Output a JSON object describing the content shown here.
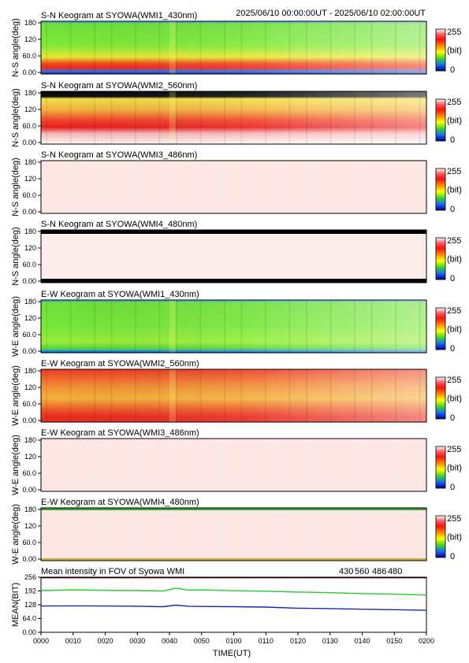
{
  "panels": [
    {
      "title": "S-N Keogram at SYOWA(WMI1_430nm)",
      "ylabel": "N-S angle(deg)",
      "style": "green430_sn"
    },
    {
      "title": "S-N Keogram at SYOWA(WMI2_560nm)",
      "ylabel": "N-S angle(deg)",
      "style": "red560_sn"
    },
    {
      "title": "S-N Keogram at SYOWA(WMI3_486nm)",
      "ylabel": "N-S angle(deg)",
      "style": "pale"
    },
    {
      "title": "S-N Keogram at SYOWA(WMI4_480nm)",
      "ylabel": "N-S angle(deg)",
      "style": "pale_bars"
    },
    {
      "title": "E-W Keogram at SYOWA(WMI1_430nm)",
      "ylabel": "W-E angle(deg)",
      "style": "green430_ew"
    },
    {
      "title": "E-W Keogram at SYOWA(WMI2_560nm)",
      "ylabel": "W-E angle(deg)",
      "style": "red560_ew"
    },
    {
      "title": "E-W Keogram at SYOWA(WMI3_486nm)",
      "ylabel": "W-E angle(deg)",
      "style": "pale"
    },
    {
      "title": "E-W Keogram at SYOWA(WMI4_480nm)",
      "ylabel": "W-E angle(deg)",
      "style": "pale_edges"
    }
  ],
  "time_range": "2025/06/10 00:00:00UT - 2025/06/10 02:00:00UT",
  "keogram_yticks": [
    "180",
    "120",
    "60.0",
    "0.00"
  ],
  "colorbar": {
    "max_label": "255",
    "unit_label": "(bit)",
    "min_label": "0"
  },
  "mean_panel": {
    "title": "Mean intensity in FOV of Syowa WMI",
    "legend": [
      {
        "label": "430",
        "color": "#1a2aa8"
      },
      {
        "label": "560",
        "color": "#22cc22"
      },
      {
        "label": "486",
        "color": "#cc2222"
      },
      {
        "label": "480",
        "color": "#000000"
      }
    ],
    "ylabel": "MEAN(BIT)",
    "yticks": [
      "256",
      "192",
      "128",
      "64.0",
      "0.00"
    ]
  },
  "xaxis": {
    "label": "TIME(UT)",
    "ticks": [
      "0000",
      "0010",
      "0020",
      "0030",
      "0040",
      "0050",
      "0100",
      "0110",
      "0120",
      "0130",
      "0140",
      "0150",
      "0200"
    ]
  },
  "chart_data": [
    {
      "type": "heatmap",
      "title": "S-N Keogram at SYOWA(WMI1_430nm)",
      "xlabel": "TIME(UT)",
      "ylabel": "N-S angle(deg)",
      "x_range": [
        "0000",
        "0200"
      ],
      "ylim": [
        0,
        180
      ],
      "zlim": [
        0,
        255
      ],
      "zlabel": "(bit)"
    },
    {
      "type": "heatmap",
      "title": "S-N Keogram at SYOWA(WMI2_560nm)",
      "xlabel": "TIME(UT)",
      "ylabel": "N-S angle(deg)",
      "x_range": [
        "0000",
        "0200"
      ],
      "ylim": [
        0,
        180
      ],
      "zlim": [
        0,
        255
      ],
      "zlabel": "(bit)"
    },
    {
      "type": "heatmap",
      "title": "S-N Keogram at SYOWA(WMI3_486nm)",
      "xlabel": "TIME(UT)",
      "ylabel": "N-S angle(deg)",
      "x_range": [
        "0000",
        "0200"
      ],
      "ylim": [
        0,
        180
      ],
      "zlim": [
        0,
        255
      ],
      "zlabel": "(bit)"
    },
    {
      "type": "heatmap",
      "title": "S-N Keogram at SYOWA(WMI4_480nm)",
      "xlabel": "TIME(UT)",
      "ylabel": "N-S angle(deg)",
      "x_range": [
        "0000",
        "0200"
      ],
      "ylim": [
        0,
        180
      ],
      "zlim": [
        0,
        255
      ],
      "zlabel": "(bit)"
    },
    {
      "type": "heatmap",
      "title": "E-W Keogram at SYOWA(WMI1_430nm)",
      "xlabel": "TIME(UT)",
      "ylabel": "W-E angle(deg)",
      "x_range": [
        "0000",
        "0200"
      ],
      "ylim": [
        0,
        180
      ],
      "zlim": [
        0,
        255
      ],
      "zlabel": "(bit)"
    },
    {
      "type": "heatmap",
      "title": "E-W Keogram at SYOWA(WMI2_560nm)",
      "xlabel": "TIME(UT)",
      "ylabel": "W-E angle(deg)",
      "x_range": [
        "0000",
        "0200"
      ],
      "ylim": [
        0,
        180
      ],
      "zlim": [
        0,
        255
      ],
      "zlabel": "(bit)"
    },
    {
      "type": "heatmap",
      "title": "E-W Keogram at SYOWA(WMI3_486nm)",
      "xlabel": "TIME(UT)",
      "ylabel": "W-E angle(deg)",
      "x_range": [
        "0000",
        "0200"
      ],
      "ylim": [
        0,
        180
      ],
      "zlim": [
        0,
        255
      ],
      "zlabel": "(bit)"
    },
    {
      "type": "heatmap",
      "title": "E-W Keogram at SYOWA(WMI4_480nm)",
      "xlabel": "TIME(UT)",
      "ylabel": "W-E angle(deg)",
      "x_range": [
        "0000",
        "0200"
      ],
      "ylim": [
        0,
        180
      ],
      "zlim": [
        0,
        255
      ],
      "zlabel": "(bit)"
    },
    {
      "type": "line",
      "title": "Mean intensity in FOV of Syowa WMI",
      "xlabel": "TIME(UT)",
      "ylabel": "MEAN(BIT)",
      "ylim": [
        0,
        256
      ],
      "x": [
        0,
        10,
        20,
        30,
        38,
        42,
        46,
        50,
        60,
        70,
        80,
        90,
        100,
        110,
        120
      ],
      "series": [
        {
          "name": "430",
          "color": "#1a2aa8",
          "values": [
            122,
            123,
            122,
            121,
            119,
            126,
            121,
            120,
            119,
            117,
            112,
            110,
            107,
            105,
            102
          ]
        },
        {
          "name": "560",
          "color": "#22cc22",
          "values": [
            194,
            197,
            195,
            194,
            192,
            205,
            196,
            197,
            193,
            191,
            187,
            184,
            180,
            177,
            173
          ]
        },
        {
          "name": "486",
          "color": "#cc2222",
          "values": [
            253,
            253,
            253,
            253,
            253,
            253,
            253,
            253,
            253,
            253,
            253,
            253,
            253,
            253,
            253
          ]
        },
        {
          "name": "480",
          "color": "#000000",
          "values": [
            255,
            255,
            255,
            255,
            255,
            255,
            255,
            255,
            255,
            255,
            255,
            255,
            255,
            255,
            255
          ]
        }
      ]
    }
  ]
}
